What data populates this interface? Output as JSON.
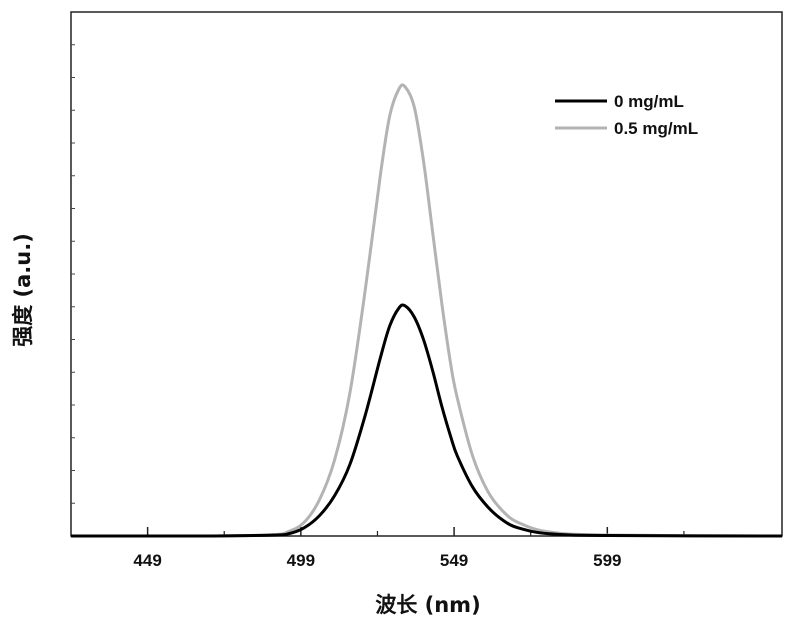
{
  "chart_data": {
    "type": "line",
    "xlabel": "波长 (nm)",
    "ylabel": "强度 (a.u.)",
    "xlim": [
      424,
      656
    ],
    "ylim": [
      0,
      1.0
    ],
    "xticks": [
      449,
      499,
      549,
      599
    ],
    "y_tick_labels": false,
    "grid": false,
    "legend_position": "top-right",
    "series": [
      {
        "name": "0 mg/mL",
        "color": "#000000",
        "x": [
          424,
          470,
          490,
          495,
          500,
          505,
          510,
          515,
          520,
          525,
          528,
          531,
          533,
          536,
          539,
          542,
          545,
          548,
          550,
          555,
          560,
          565,
          570,
          580,
          600,
          656
        ],
        "y": [
          0.0,
          0.0,
          0.002,
          0.005,
          0.018,
          0.045,
          0.09,
          0.16,
          0.27,
          0.4,
          0.47,
          0.51,
          0.515,
          0.49,
          0.44,
          0.37,
          0.29,
          0.22,
          0.18,
          0.11,
          0.065,
          0.035,
          0.018,
          0.005,
          0.001,
          0.0
        ]
      },
      {
        "name": "0.5 mg/mL",
        "color": "#b3b3b3",
        "x": [
          424,
          470,
          490,
          495,
          500,
          505,
          510,
          515,
          520,
          525,
          528,
          531,
          533,
          536,
          539,
          542,
          545,
          548,
          550,
          555,
          560,
          565,
          570,
          580,
          600,
          656
        ],
        "y": [
          0.0,
          0.0,
          0.003,
          0.01,
          0.03,
          0.08,
          0.17,
          0.32,
          0.55,
          0.81,
          0.94,
          1.0,
          1.005,
          0.96,
          0.84,
          0.68,
          0.52,
          0.38,
          0.31,
          0.18,
          0.1,
          0.055,
          0.03,
          0.009,
          0.002,
          0.0
        ]
      }
    ]
  }
}
